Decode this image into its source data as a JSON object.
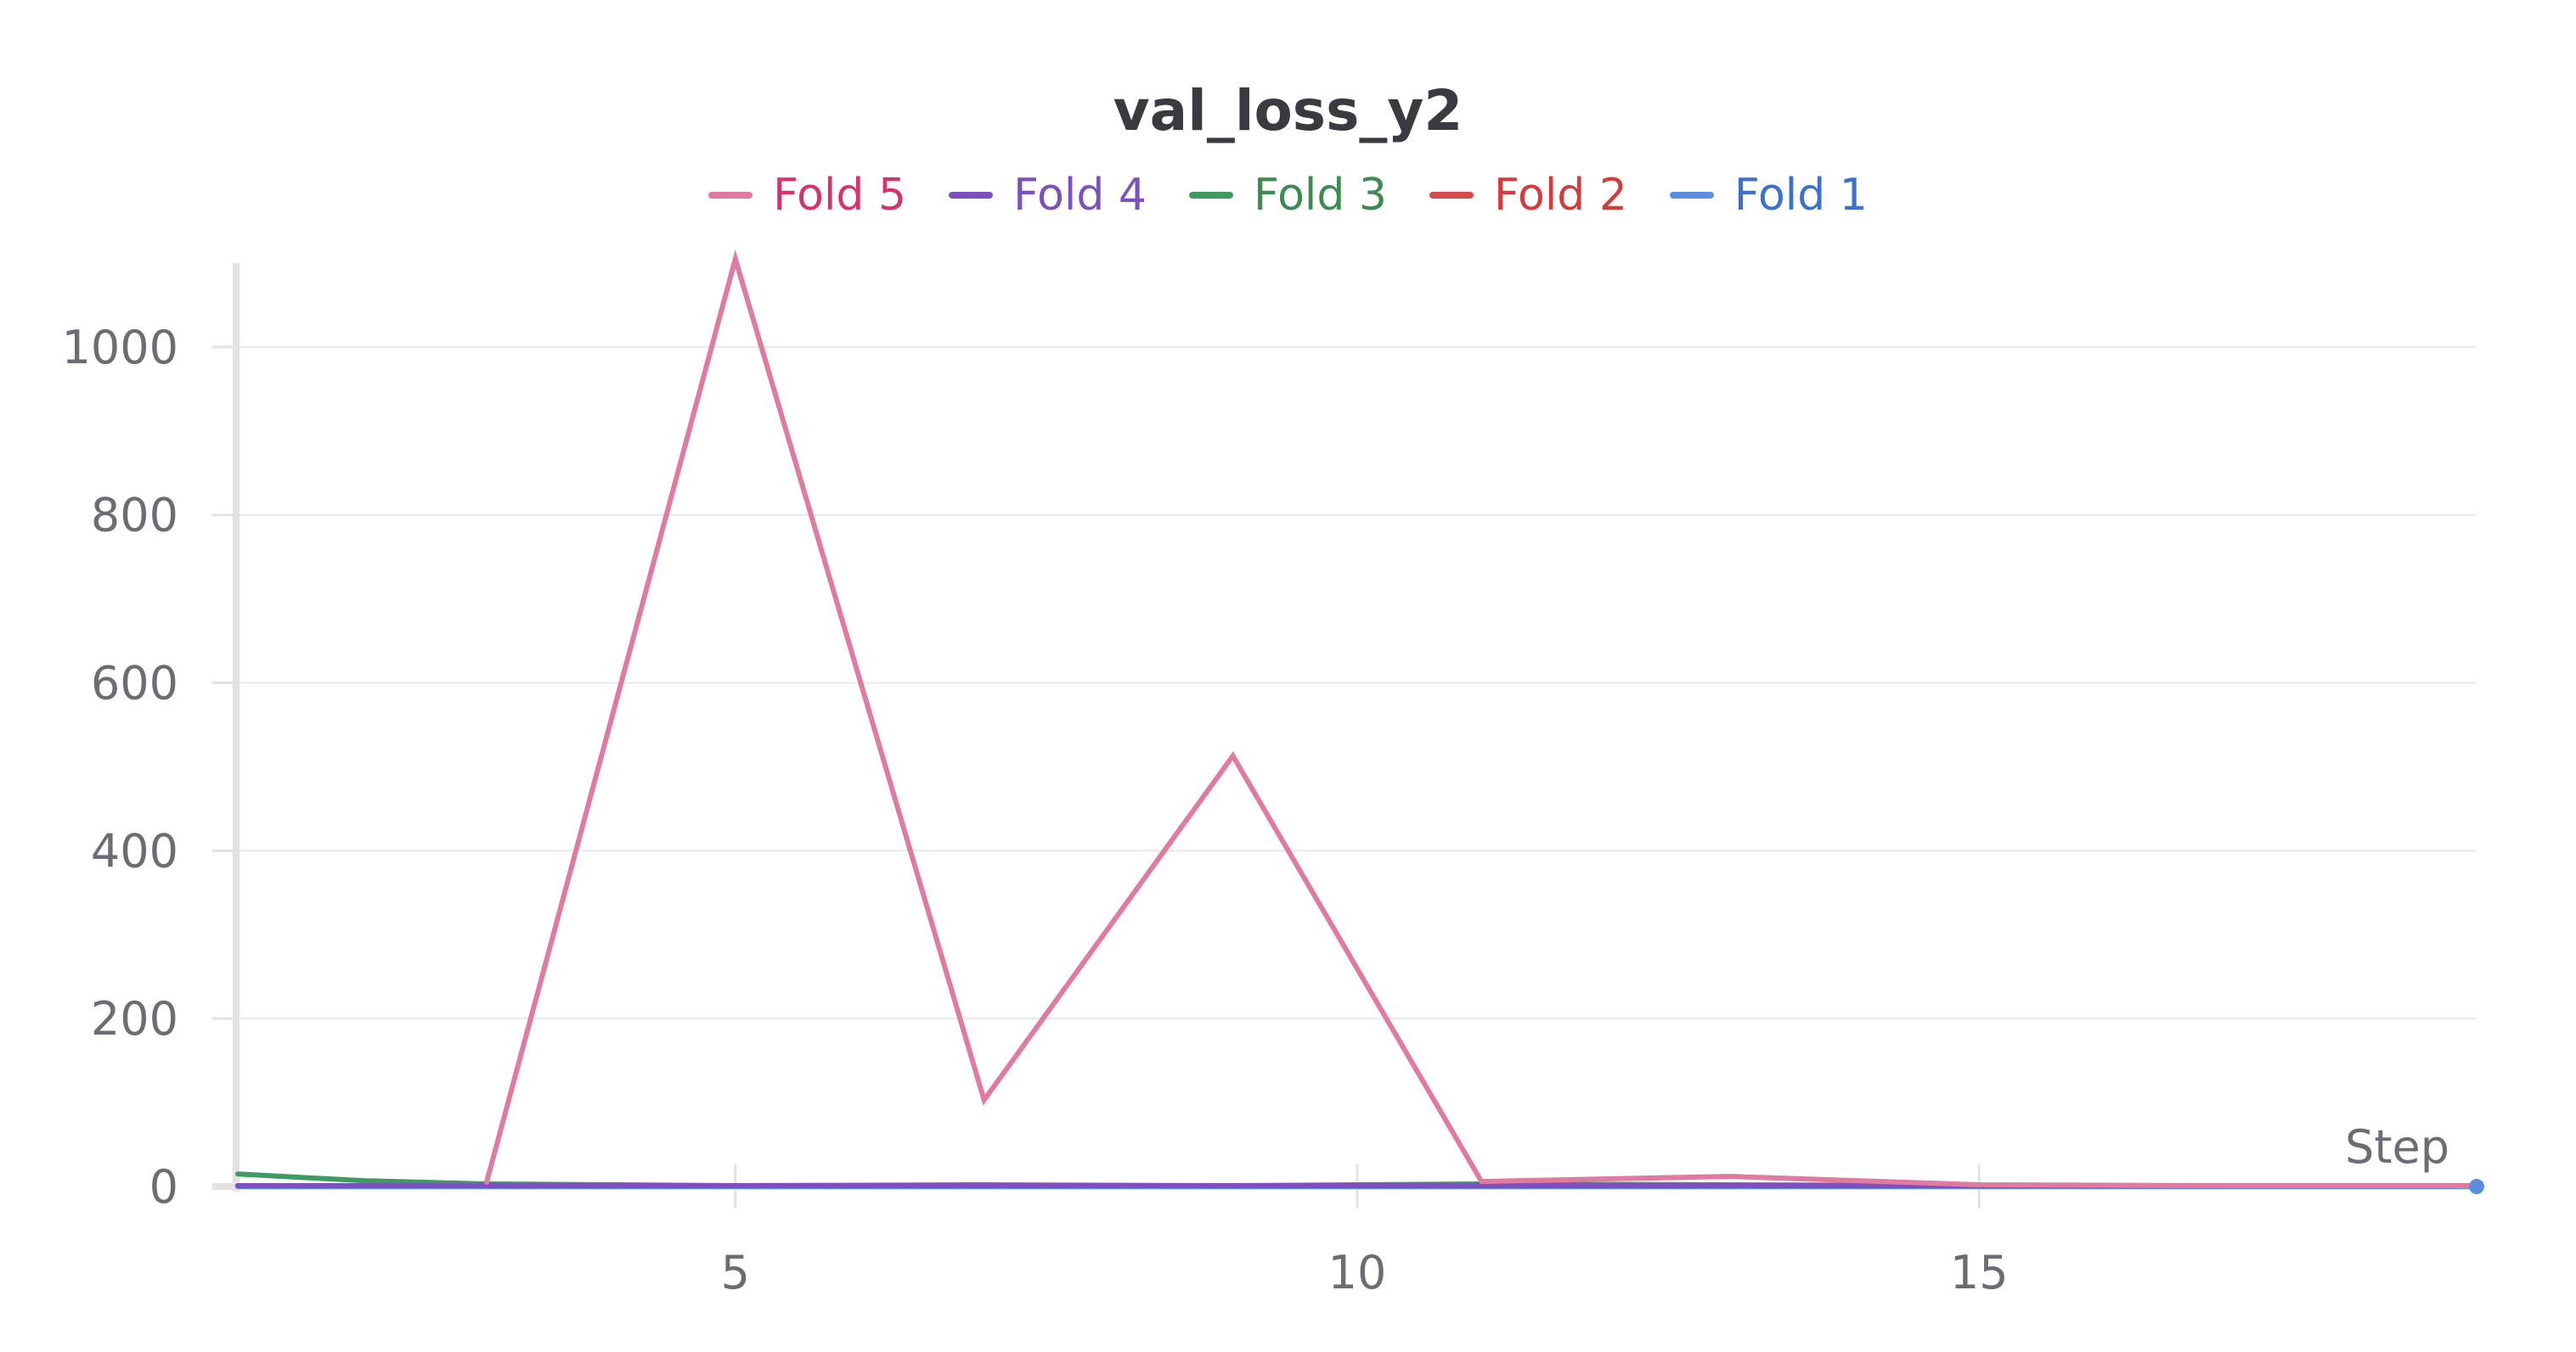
{
  "chart_data": {
    "type": "line",
    "title": "val_loss_y2",
    "xlabel": "Step",
    "ylabel": "",
    "xlim": [
      1,
      19
    ],
    "ylim": [
      0,
      1100
    ],
    "grid": true,
    "legend_position": "top-center",
    "x_ticks": [
      5,
      10,
      15
    ],
    "y_ticks": [
      0,
      200,
      400,
      600,
      800,
      1000
    ],
    "series": [
      {
        "name": "Fold 5",
        "color": "#e07aa0",
        "text_color": "#d6336c",
        "x": [
          3,
          5,
          7,
          9,
          11,
          13,
          15,
          17,
          19
        ],
        "y": [
          5,
          1105,
          103,
          513,
          6,
          12,
          2,
          1,
          1
        ]
      },
      {
        "name": "Fold 4",
        "color": "#7e4fbf",
        "text_color": "#7e4fbf",
        "x": [
          1,
          3,
          5,
          7,
          9,
          11,
          13,
          15,
          17,
          19
        ],
        "y": [
          1,
          1,
          1,
          1,
          1,
          1,
          1,
          1,
          1,
          1
        ]
      },
      {
        "name": "Fold 3",
        "color": "#3d9b5f",
        "text_color": "#3d8b4f",
        "x": [
          1,
          2,
          3,
          5,
          7,
          9,
          11,
          13,
          15,
          17,
          19
        ],
        "y": [
          15,
          7,
          3,
          1,
          2,
          1,
          3,
          2,
          1,
          1,
          1
        ]
      },
      {
        "name": "Fold 2",
        "color": "#d94a4a",
        "text_color": "#d43b3b",
        "x": [
          1,
          3,
          5,
          7,
          9,
          11,
          13,
          15,
          17,
          19
        ],
        "y": [
          1,
          1,
          1,
          1,
          1,
          1,
          1,
          1,
          1,
          1
        ]
      },
      {
        "name": "Fold 1",
        "color": "#5a8fe0",
        "text_color": "#3a70d0",
        "x": [
          1,
          3,
          5,
          7,
          9,
          11,
          13,
          15,
          17,
          19
        ],
        "y": [
          0,
          0,
          0,
          0,
          0,
          0,
          0,
          0,
          0,
          0
        ]
      }
    ]
  }
}
